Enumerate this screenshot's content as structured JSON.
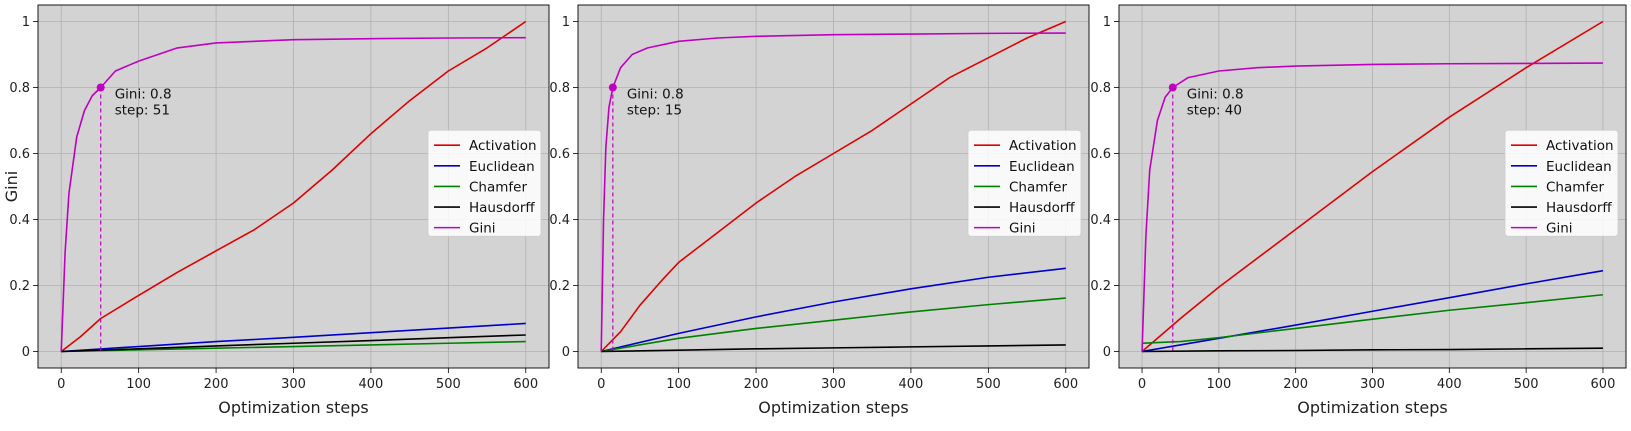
{
  "chart_data": [
    {
      "type": "line",
      "xlabel": "Optimization steps",
      "ylabel": "Gini",
      "xlim": [
        -30,
        630
      ],
      "ylim": [
        -0.05,
        1.05
      ],
      "xticks": [
        0,
        100,
        200,
        300,
        400,
        500,
        600
      ],
      "yticks": [
        0.0,
        0.2,
        0.4,
        0.6,
        0.8,
        1.0
      ],
      "grid": true,
      "legend_position": "center-right",
      "annotation": {
        "text_line1": "Gini: 0.8",
        "text_line2": "step: 51",
        "x": 51,
        "y": 0.8
      },
      "series": [
        {
          "name": "Activation",
          "color": "#e00000",
          "x": [
            0,
            25,
            51,
            100,
            150,
            200,
            250,
            300,
            350,
            400,
            450,
            500,
            550,
            600
          ],
          "y": [
            0.0,
            0.045,
            0.1,
            0.17,
            0.24,
            0.305,
            0.37,
            0.45,
            0.55,
            0.66,
            0.76,
            0.85,
            0.92,
            1.0
          ]
        },
        {
          "name": "Euclidean",
          "color": "#0000cc",
          "x": [
            0,
            100,
            200,
            300,
            400,
            500,
            600
          ],
          "y": [
            0.0,
            0.015,
            0.03,
            0.043,
            0.057,
            0.071,
            0.085
          ]
        },
        {
          "name": "Chamfer",
          "color": "#008000",
          "x": [
            0,
            100,
            200,
            300,
            400,
            500,
            600
          ],
          "y": [
            0.0,
            0.005,
            0.01,
            0.015,
            0.02,
            0.025,
            0.03
          ]
        },
        {
          "name": "Hausdorff",
          "color": "#000000",
          "x": [
            0,
            100,
            200,
            300,
            400,
            500,
            600
          ],
          "y": [
            0.0,
            0.008,
            0.017,
            0.025,
            0.033,
            0.042,
            0.05
          ]
        },
        {
          "name": "Gini",
          "color": "#c000c0",
          "x": [
            0,
            5,
            10,
            20,
            30,
            40,
            51,
            70,
            100,
            150,
            200,
            300,
            400,
            500,
            600
          ],
          "y": [
            0.0,
            0.3,
            0.48,
            0.65,
            0.73,
            0.775,
            0.8,
            0.85,
            0.88,
            0.92,
            0.935,
            0.945,
            0.948,
            0.95,
            0.951
          ]
        }
      ]
    },
    {
      "type": "line",
      "xlabel": "Optimization steps",
      "ylabel": "",
      "xlim": [
        -30,
        630
      ],
      "ylim": [
        -0.05,
        1.05
      ],
      "xticks": [
        0,
        100,
        200,
        300,
        400,
        500,
        600
      ],
      "yticks": [
        0.0,
        0.2,
        0.4,
        0.6,
        0.8,
        1.0
      ],
      "grid": true,
      "legend_position": "center-right",
      "annotation": {
        "text_line1": "Gini: 0.8",
        "text_line2": "step: 15",
        "x": 15,
        "y": 0.8
      },
      "series": [
        {
          "name": "Activation",
          "color": "#e00000",
          "x": [
            0,
            25,
            50,
            80,
            100,
            150,
            200,
            250,
            300,
            350,
            400,
            450,
            500,
            550,
            600
          ],
          "y": [
            0.0,
            0.06,
            0.14,
            0.22,
            0.27,
            0.36,
            0.45,
            0.53,
            0.6,
            0.67,
            0.75,
            0.83,
            0.89,
            0.95,
            1.0
          ]
        },
        {
          "name": "Euclidean",
          "color": "#0000cc",
          "x": [
            0,
            100,
            200,
            300,
            400,
            500,
            600
          ],
          "y": [
            0.0,
            0.055,
            0.105,
            0.15,
            0.19,
            0.225,
            0.252
          ]
        },
        {
          "name": "Chamfer",
          "color": "#008000",
          "x": [
            0,
            100,
            200,
            300,
            400,
            500,
            600
          ],
          "y": [
            0.0,
            0.04,
            0.07,
            0.095,
            0.12,
            0.142,
            0.162
          ]
        },
        {
          "name": "Hausdorff",
          "color": "#000000",
          "x": [
            0,
            100,
            200,
            300,
            400,
            500,
            600
          ],
          "y": [
            0.0,
            0.004,
            0.008,
            0.011,
            0.014,
            0.017,
            0.02
          ]
        },
        {
          "name": "Gini",
          "color": "#c000c0",
          "x": [
            0,
            3,
            6,
            10,
            15,
            25,
            40,
            60,
            100,
            150,
            200,
            300,
            400,
            500,
            600
          ],
          "y": [
            0.0,
            0.4,
            0.62,
            0.74,
            0.8,
            0.86,
            0.9,
            0.92,
            0.94,
            0.95,
            0.955,
            0.96,
            0.962,
            0.964,
            0.965
          ]
        }
      ]
    },
    {
      "type": "line",
      "xlabel": "Optimization steps",
      "ylabel": "",
      "xlim": [
        -30,
        630
      ],
      "ylim": [
        -0.05,
        1.05
      ],
      "xticks": [
        0,
        100,
        200,
        300,
        400,
        500,
        600
      ],
      "yticks": [
        0.0,
        0.2,
        0.4,
        0.6,
        0.8,
        1.0
      ],
      "grid": true,
      "legend_position": "center-right",
      "annotation": {
        "text_line1": "Gini: 0.8",
        "text_line2": "step: 40",
        "x": 40,
        "y": 0.8
      },
      "series": [
        {
          "name": "Activation",
          "color": "#e00000",
          "x": [
            0,
            50,
            100,
            200,
            300,
            400,
            500,
            600
          ],
          "y": [
            0.0,
            0.1,
            0.195,
            0.37,
            0.545,
            0.71,
            0.86,
            1.0
          ]
        },
        {
          "name": "Euclidean",
          "color": "#0000cc",
          "x": [
            0,
            100,
            200,
            300,
            400,
            500,
            600
          ],
          "y": [
            0.0,
            0.04,
            0.08,
            0.122,
            0.163,
            0.205,
            0.245
          ]
        },
        {
          "name": "Chamfer",
          "color": "#008000",
          "x": [
            0,
            50,
            100,
            200,
            300,
            400,
            500,
            600
          ],
          "y": [
            0.025,
            0.03,
            0.042,
            0.07,
            0.098,
            0.125,
            0.148,
            0.172
          ]
        },
        {
          "name": "Hausdorff",
          "color": "#000000",
          "x": [
            0,
            100,
            200,
            300,
            400,
            500,
            600
          ],
          "y": [
            0.0,
            0.002,
            0.003,
            0.005,
            0.006,
            0.008,
            0.01
          ]
        },
        {
          "name": "Gini",
          "color": "#c000c0",
          "x": [
            0,
            5,
            10,
            20,
            30,
            40,
            60,
            100,
            150,
            200,
            300,
            400,
            500,
            600
          ],
          "y": [
            0.0,
            0.35,
            0.55,
            0.7,
            0.77,
            0.8,
            0.83,
            0.85,
            0.86,
            0.865,
            0.87,
            0.872,
            0.873,
            0.874
          ]
        }
      ]
    }
  ]
}
